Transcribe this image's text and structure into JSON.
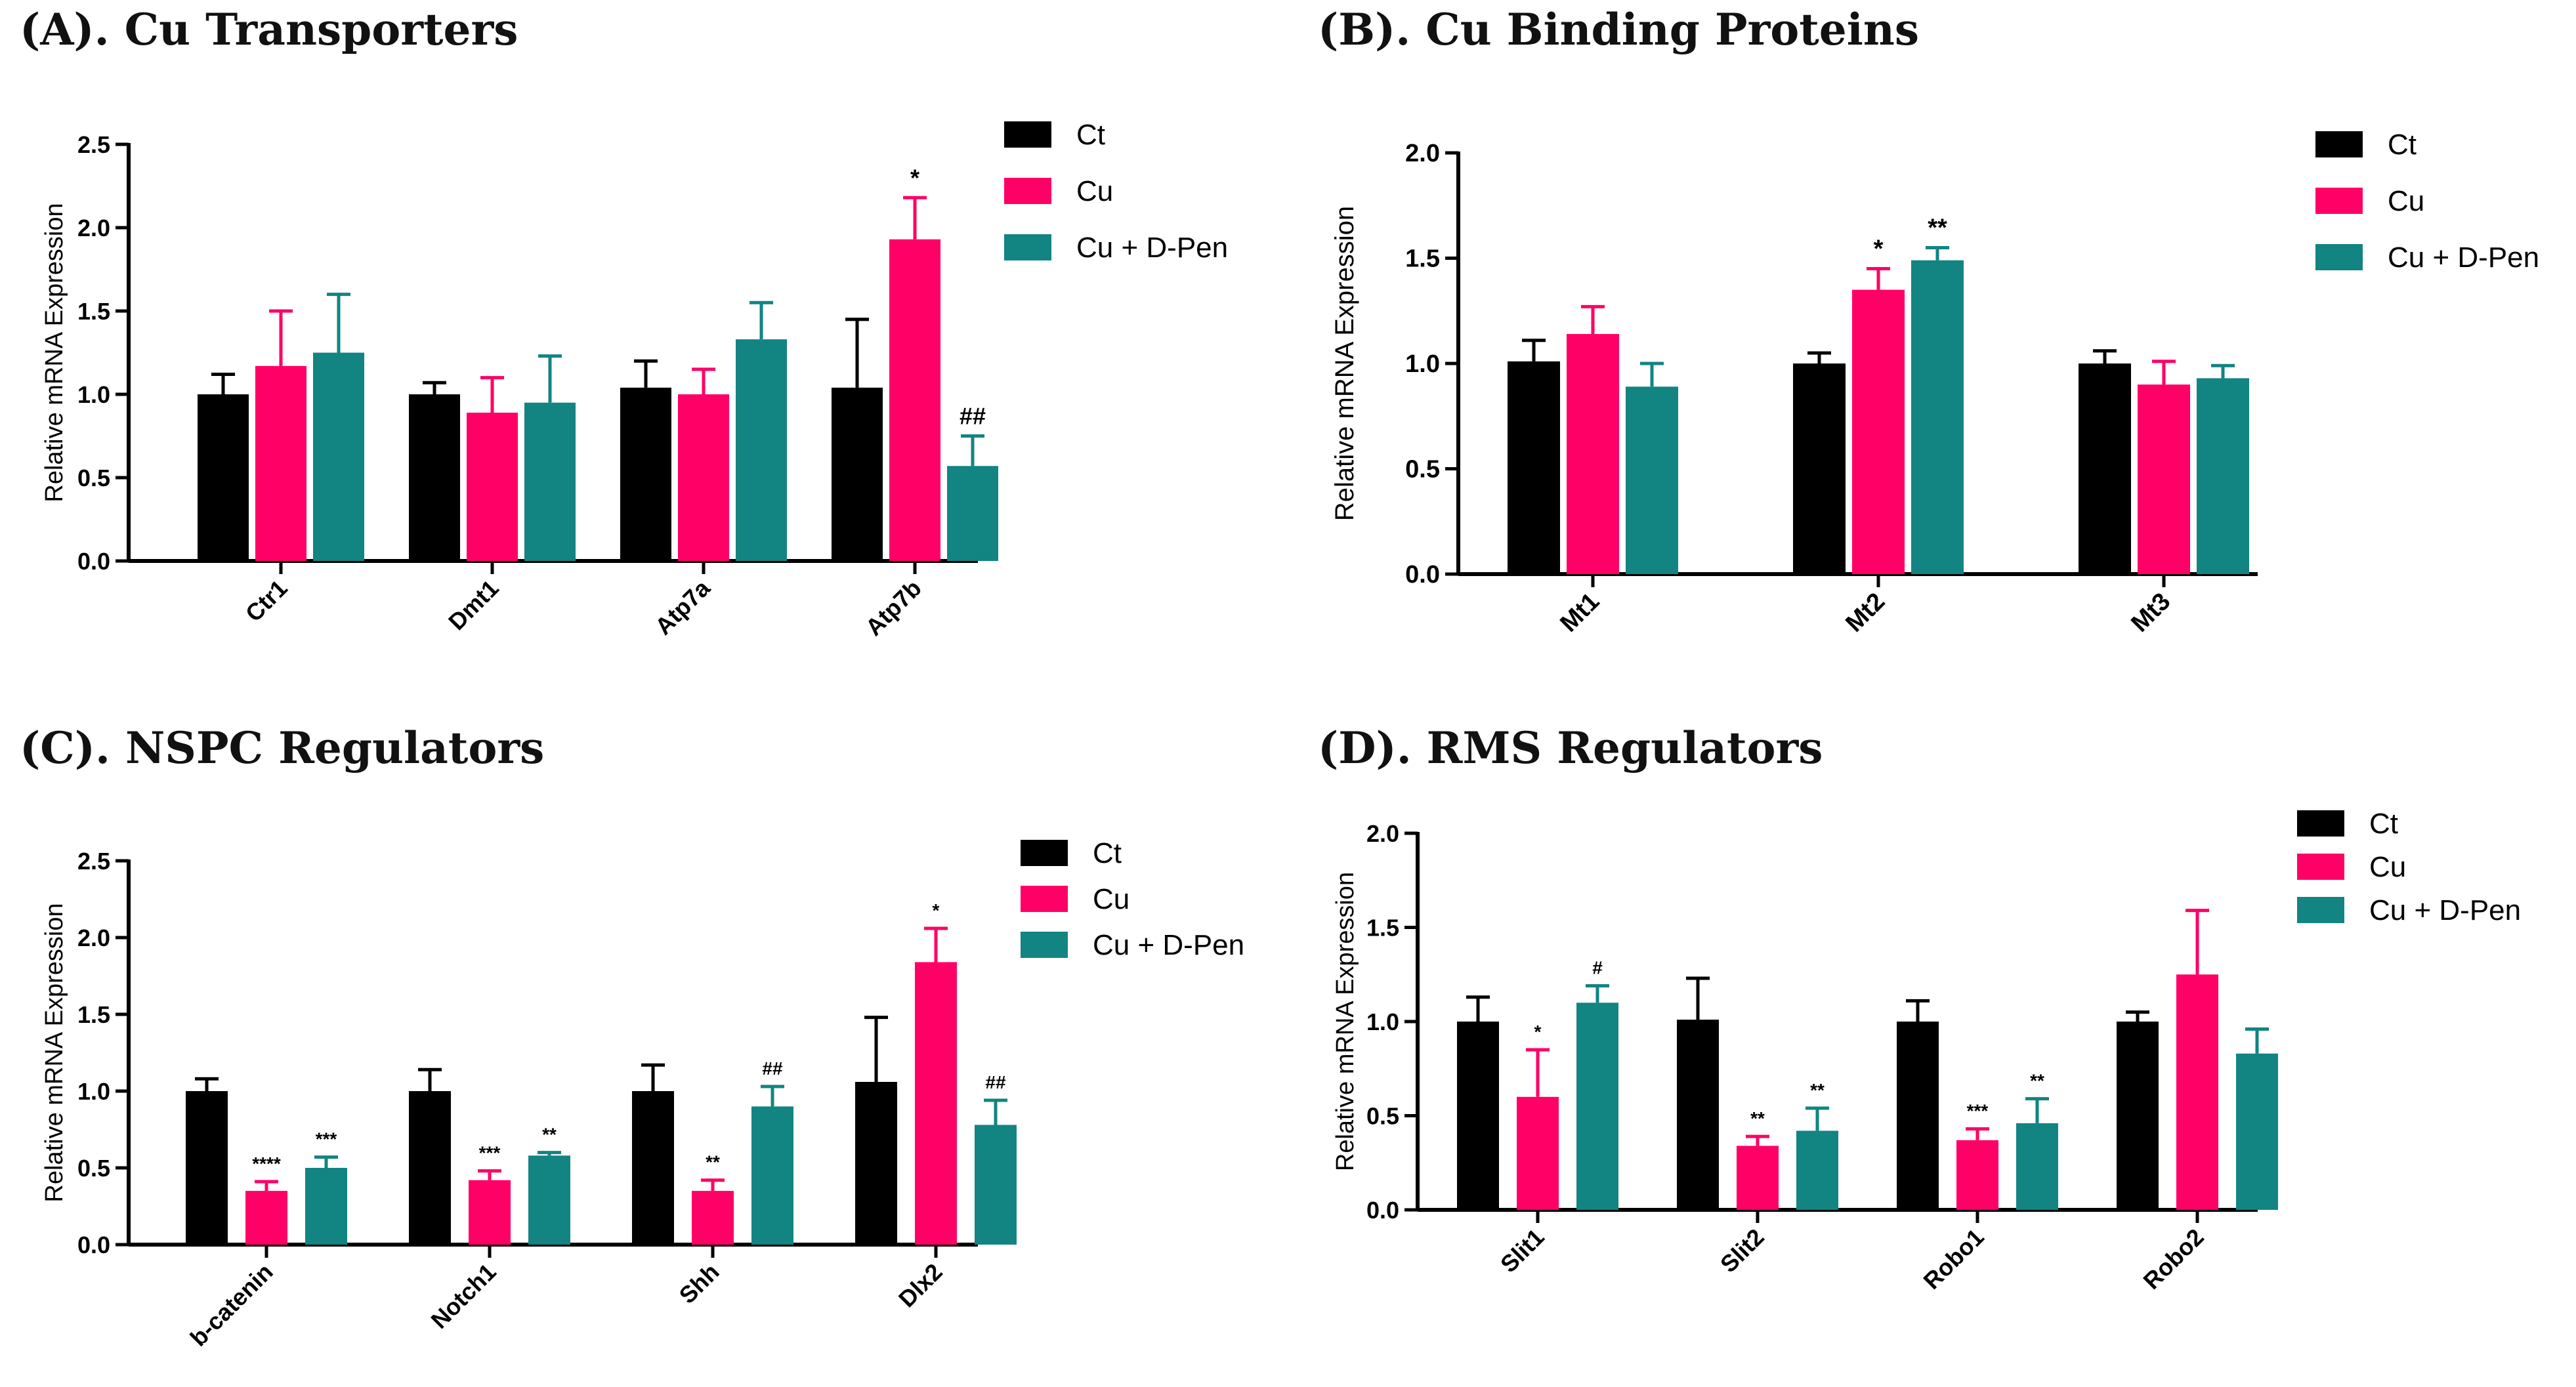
{
  "colors": {
    "Ct": "#000000",
    "Cu": "#ff0066",
    "CuDPen": "#128482",
    "axis": "#000000"
  },
  "legend": [
    "Ct",
    "Cu",
    "Cu + D-Pen"
  ],
  "chart_data": [
    {
      "type": "bar",
      "title": "(A). Cu Transporters",
      "ylabel": "Relative mRNA Expression",
      "xlabel": "",
      "ylim": [
        0,
        2.5
      ],
      "yticks": [
        "0.0",
        "0.5",
        "1.0",
        "1.5",
        "2.0",
        "2.5"
      ],
      "categories": [
        "Ctr1",
        "Dmt1",
        "Atp7a",
        "Atp7b"
      ],
      "series": [
        {
          "name": "Ct",
          "values": [
            1.0,
            1.0,
            1.04,
            1.04
          ],
          "errors": [
            0.12,
            0.07,
            0.16,
            0.41
          ],
          "annotations": [
            "",
            "",
            "",
            ""
          ]
        },
        {
          "name": "Cu",
          "values": [
            1.17,
            0.89,
            1.0,
            1.93
          ],
          "errors": [
            0.33,
            0.21,
            0.15,
            0.25
          ],
          "annotations": [
            "",
            "",
            "",
            "*"
          ]
        },
        {
          "name": "Cu + D-Pen",
          "values": [
            1.25,
            0.95,
            1.33,
            0.57
          ],
          "errors": [
            0.35,
            0.28,
            0.22,
            0.18
          ],
          "annotations": [
            "",
            "",
            "",
            "##"
          ]
        }
      ]
    },
    {
      "type": "bar",
      "title": "(B). Cu Binding Proteins",
      "ylabel": "Relative mRNA Expression",
      "xlabel": "",
      "ylim": [
        0,
        2.0
      ],
      "yticks": [
        "0.0",
        "0.5",
        "1.0",
        "1.5",
        "2.0"
      ],
      "categories": [
        "Mt1",
        "Mt2",
        "Mt3"
      ],
      "series": [
        {
          "name": "Ct",
          "values": [
            1.01,
            1.0,
            1.0
          ],
          "errors": [
            0.1,
            0.05,
            0.06
          ],
          "annotations": [
            "",
            "",
            ""
          ]
        },
        {
          "name": "Cu",
          "values": [
            1.14,
            1.35,
            0.9
          ],
          "errors": [
            0.13,
            0.1,
            0.11
          ],
          "annotations": [
            "",
            "*",
            ""
          ]
        },
        {
          "name": "Cu + D-Pen",
          "values": [
            0.89,
            1.49,
            0.93
          ],
          "errors": [
            0.11,
            0.06,
            0.06
          ],
          "annotations": [
            "",
            "**",
            ""
          ]
        }
      ]
    },
    {
      "type": "bar",
      "title": "(C). NSPC Regulators",
      "ylabel": "Relative mRNA Expression",
      "xlabel": "",
      "ylim": [
        0,
        2.5
      ],
      "yticks": [
        "0.0",
        "0.5",
        "1.0",
        "1.5",
        "2.0",
        "2.5"
      ],
      "categories": [
        "b-catenin",
        "Notch1",
        "Shh",
        "Dlx2"
      ],
      "series": [
        {
          "name": "Ct",
          "values": [
            1.0,
            1.0,
            1.0,
            1.06
          ],
          "errors": [
            0.08,
            0.14,
            0.17,
            0.42
          ],
          "annotations": [
            "",
            "",
            "",
            ""
          ]
        },
        {
          "name": "Cu",
          "values": [
            0.35,
            0.42,
            0.35,
            1.84
          ],
          "errors": [
            0.06,
            0.06,
            0.07,
            0.22
          ],
          "annotations": [
            "****",
            "***",
            "**",
            "*"
          ]
        },
        {
          "name": "Cu + D-Pen",
          "values": [
            0.5,
            0.58,
            0.9,
            0.78
          ],
          "errors": [
            0.07,
            0.02,
            0.13,
            0.16
          ],
          "annotations": [
            "***",
            "**",
            "##",
            "##"
          ]
        }
      ]
    },
    {
      "type": "bar",
      "title": "(D). RMS Regulators",
      "ylabel": "Relative mRNA Expression",
      "xlabel": "",
      "ylim": [
        0,
        2.0
      ],
      "yticks": [
        "0.0",
        "0.5",
        "1.0",
        "1.5",
        "2.0"
      ],
      "categories": [
        "Slit1",
        "Slit2",
        "Robo1",
        "Robo2"
      ],
      "series": [
        {
          "name": "Ct",
          "values": [
            1.0,
            1.01,
            1.0,
            1.0
          ],
          "errors": [
            0.13,
            0.22,
            0.11,
            0.05
          ],
          "annotations": [
            "",
            "",
            "",
            ""
          ]
        },
        {
          "name": "Cu",
          "values": [
            0.6,
            0.34,
            0.37,
            1.25
          ],
          "errors": [
            0.25,
            0.05,
            0.06,
            0.34
          ],
          "annotations": [
            "*",
            "**",
            "***",
            ""
          ]
        },
        {
          "name": "Cu + D-Pen",
          "values": [
            1.1,
            0.42,
            0.46,
            0.83
          ],
          "errors": [
            0.09,
            0.12,
            0.13,
            0.13
          ],
          "annotations": [
            "#",
            "**",
            "**",
            ""
          ]
        }
      ]
    }
  ]
}
